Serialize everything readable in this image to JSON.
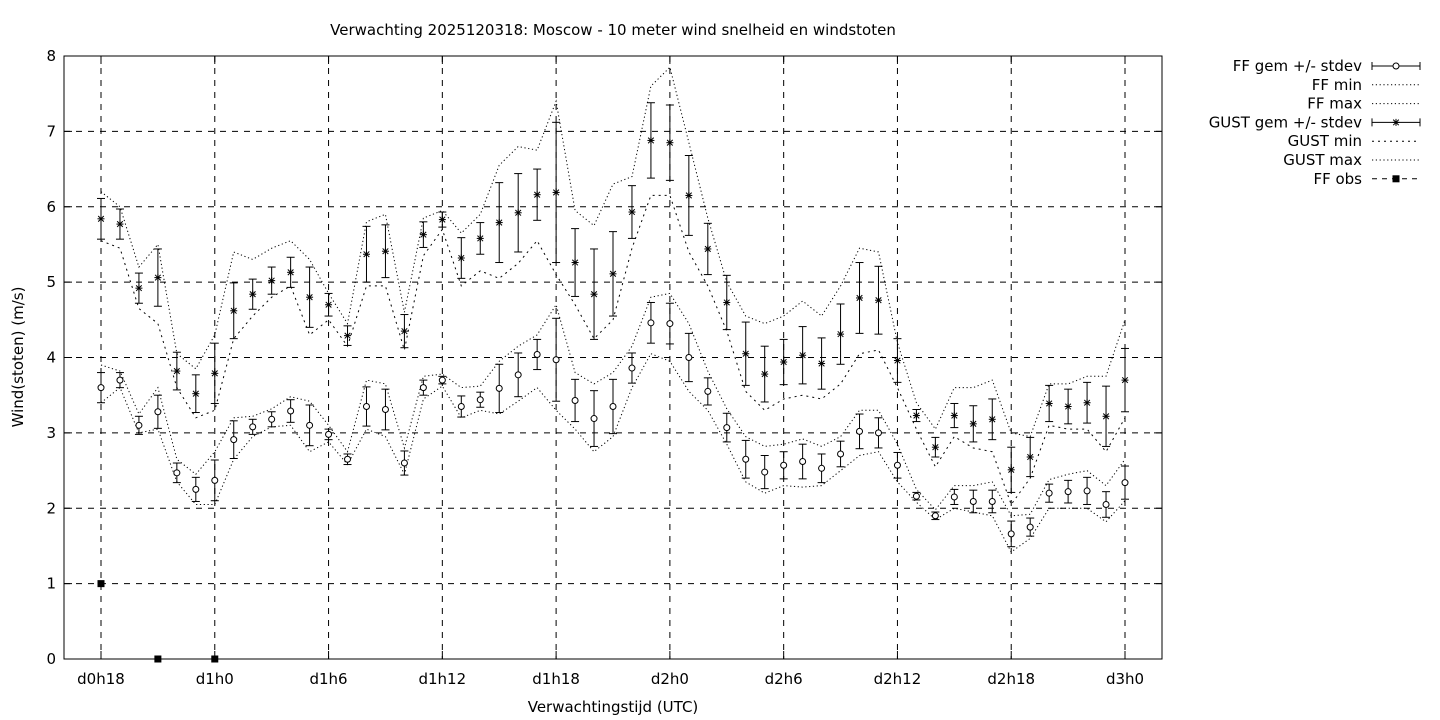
{
  "chart_data": {
    "type": "scatter",
    "title": "Verwachting 2025120318: Moscow - 10 meter wind snelheid en windstoten",
    "xlabel": "Verwachtingstijd (UTC)",
    "ylabel": "Wind(stoten) (m/s)",
    "x_tick_labels": [
      "d0h18",
      "d1h0",
      "d1h6",
      "d1h12",
      "d1h18",
      "d2h0",
      "d2h6",
      "d2h12",
      "d2h18",
      "d3h0"
    ],
    "x_tick_hours": [
      18,
      24,
      30,
      36,
      42,
      48,
      54,
      60,
      66,
      72
    ],
    "xlim_hours": [
      14,
      72
    ],
    "ylim": [
      0,
      8
    ],
    "y_ticks": [
      "0",
      "1",
      "2",
      "3",
      "4",
      "5",
      "6",
      "7",
      "8"
    ],
    "grid": true,
    "legend_position": "outside-top-right",
    "legend": [
      {
        "label": "FF gem +/- stdev",
        "symbol": "open-circle-errorbar"
      },
      {
        "label": "FF min",
        "symbol": "dotted"
      },
      {
        "label": "FF max",
        "symbol": "dotted"
      },
      {
        "label": "GUST gem +/- stdev",
        "symbol": "star-errorbar"
      },
      {
        "label": "GUST min",
        "symbol": "dotted"
      },
      {
        "label": "GUST max",
        "symbol": "dotted"
      },
      {
        "label": "FF obs",
        "symbol": "filled-square-dashed"
      }
    ],
    "x_hours": [
      18,
      19,
      20,
      21,
      22,
      23,
      24,
      25,
      26,
      27,
      28,
      29,
      30,
      31,
      32,
      33,
      34,
      35,
      36,
      37,
      38,
      39,
      40,
      41,
      42,
      43,
      44,
      45,
      46,
      47,
      48,
      49,
      50,
      51,
      52,
      53,
      54,
      55,
      56,
      57,
      58,
      59,
      60,
      61,
      62,
      63,
      64,
      65,
      66,
      67,
      68,
      69,
      70,
      71,
      72
    ],
    "series": [
      {
        "name": "FF gem +/- stdev",
        "mean": [
          3.6,
          3.7,
          3.1,
          3.28,
          2.47,
          2.25,
          2.37,
          2.91,
          3.08,
          3.18,
          3.29,
          3.1,
          2.98,
          2.65,
          3.35,
          3.31,
          2.6,
          3.6,
          3.7,
          3.35,
          3.44,
          3.59,
          3.77,
          4.04,
          3.97,
          3.43,
          3.19,
          3.35,
          3.86,
          4.46,
          4.45,
          4.0,
          3.55,
          3.07,
          2.65,
          2.48,
          2.57,
          2.62,
          2.53,
          2.72,
          3.02,
          3.0,
          2.57,
          2.16,
          1.9,
          2.15,
          2.09,
          2.09,
          1.66,
          1.75,
          2.2,
          2.22,
          2.23,
          2.05,
          2.34
        ],
        "stdev": [
          0.2,
          0.1,
          0.12,
          0.22,
          0.13,
          0.16,
          0.27,
          0.25,
          0.1,
          0.1,
          0.15,
          0.27,
          0.07,
          0.07,
          0.26,
          0.27,
          0.16,
          0.1,
          0.05,
          0.14,
          0.1,
          0.32,
          0.29,
          0.2,
          0.55,
          0.28,
          0.37,
          0.36,
          0.2,
          0.27,
          0.27,
          0.32,
          0.18,
          0.19,
          0.25,
          0.22,
          0.18,
          0.23,
          0.19,
          0.17,
          0.23,
          0.2,
          0.17,
          0.05,
          0.05,
          0.1,
          0.15,
          0.15,
          0.17,
          0.12,
          0.12,
          0.15,
          0.18,
          0.17,
          0.22
        ]
      },
      {
        "name": "FF min",
        "values": [
          3.4,
          3.6,
          3.0,
          3.05,
          2.35,
          2.05,
          2.05,
          2.65,
          2.95,
          3.08,
          3.1,
          2.75,
          2.88,
          2.58,
          3.05,
          2.95,
          2.45,
          3.45,
          3.62,
          3.2,
          3.3,
          3.25,
          3.42,
          3.6,
          3.3,
          3.05,
          2.75,
          2.95,
          3.6,
          4.05,
          3.95,
          3.55,
          3.3,
          2.85,
          2.35,
          2.2,
          2.3,
          2.28,
          2.3,
          2.5,
          2.7,
          2.75,
          2.35,
          2.08,
          1.85,
          2.0,
          1.95,
          1.9,
          1.42,
          1.6,
          2.0,
          2.0,
          2.0,
          1.82,
          2.1
        ]
      },
      {
        "name": "FF max",
        "values": [
          3.9,
          3.82,
          3.25,
          3.6,
          2.65,
          2.45,
          2.75,
          3.2,
          3.22,
          3.32,
          3.48,
          3.42,
          3.1,
          2.75,
          3.7,
          3.65,
          2.8,
          3.75,
          3.78,
          3.6,
          3.62,
          3.95,
          4.15,
          4.3,
          4.7,
          3.8,
          3.65,
          3.8,
          4.15,
          4.8,
          4.85,
          4.45,
          3.82,
          3.32,
          2.95,
          2.82,
          2.85,
          2.92,
          2.82,
          2.95,
          3.3,
          3.3,
          2.85,
          2.25,
          1.98,
          2.3,
          2.3,
          2.35,
          1.9,
          1.92,
          2.38,
          2.45,
          2.5,
          2.3,
          2.65
        ]
      },
      {
        "name": "GUST gem +/- stdev",
        "mean": [
          5.84,
          5.77,
          4.92,
          5.06,
          3.82,
          3.52,
          3.79,
          4.62,
          4.84,
          5.02,
          5.13,
          4.8,
          4.7,
          4.29,
          5.37,
          5.41,
          4.35,
          5.63,
          5.83,
          5.32,
          5.58,
          5.79,
          5.92,
          6.16,
          6.19,
          5.26,
          4.84,
          5.11,
          5.93,
          6.88,
          6.85,
          6.15,
          5.44,
          4.73,
          4.05,
          3.78,
          3.94,
          4.03,
          3.92,
          4.31,
          4.79,
          4.76,
          3.96,
          3.23,
          2.81,
          3.23,
          3.12,
          3.18,
          2.51,
          2.68,
          3.39,
          3.35,
          3.4,
          3.22,
          3.7
        ],
        "stdev": [
          0.27,
          0.2,
          0.2,
          0.38,
          0.25,
          0.25,
          0.4,
          0.37,
          0.2,
          0.18,
          0.2,
          0.4,
          0.15,
          0.13,
          0.37,
          0.35,
          0.22,
          0.17,
          0.1,
          0.27,
          0.21,
          0.53,
          0.52,
          0.34,
          0.93,
          0.45,
          0.6,
          0.56,
          0.35,
          0.5,
          0.5,
          0.53,
          0.34,
          0.36,
          0.42,
          0.37,
          0.3,
          0.38,
          0.34,
          0.4,
          0.47,
          0.45,
          0.29,
          0.08,
          0.13,
          0.16,
          0.24,
          0.27,
          0.3,
          0.26,
          0.24,
          0.23,
          0.27,
          0.4,
          0.42
        ]
      },
      {
        "name": "GUST min",
        "values": [
          5.55,
          5.45,
          4.65,
          4.45,
          3.6,
          3.2,
          3.3,
          4.25,
          4.55,
          4.8,
          4.95,
          4.3,
          4.5,
          4.15,
          4.95,
          4.95,
          4.1,
          5.35,
          5.7,
          4.95,
          5.15,
          5.05,
          5.25,
          5.55,
          5.1,
          4.7,
          4.25,
          4.5,
          5.45,
          6.15,
          6.15,
          5.4,
          4.95,
          4.35,
          3.55,
          3.3,
          3.45,
          3.5,
          3.45,
          3.65,
          4.05,
          4.1,
          3.6,
          3.05,
          2.55,
          2.95,
          2.8,
          2.75,
          2.05,
          2.4,
          3.1,
          3.05,
          3.05,
          2.75,
          3.2
        ]
      },
      {
        "name": "GUST max",
        "values": [
          6.2,
          6.0,
          5.2,
          5.5,
          4.05,
          3.85,
          4.3,
          5.4,
          5.3,
          5.45,
          5.55,
          5.3,
          4.85,
          4.45,
          5.8,
          5.9,
          4.6,
          5.85,
          5.95,
          5.65,
          5.9,
          6.55,
          6.8,
          6.75,
          7.4,
          5.95,
          5.75,
          6.3,
          6.4,
          7.6,
          7.85,
          6.85,
          5.85,
          5.0,
          4.55,
          4.45,
          4.55,
          4.75,
          4.55,
          4.95,
          5.45,
          5.4,
          4.2,
          3.4,
          3.05,
          3.6,
          3.6,
          3.7,
          3.0,
          2.95,
          3.65,
          3.65,
          3.75,
          3.75,
          4.5
        ]
      },
      {
        "name": "FF obs",
        "x_hours": [
          18,
          21,
          24
        ],
        "values": [
          1.0,
          0.0,
          0.0
        ]
      }
    ]
  }
}
